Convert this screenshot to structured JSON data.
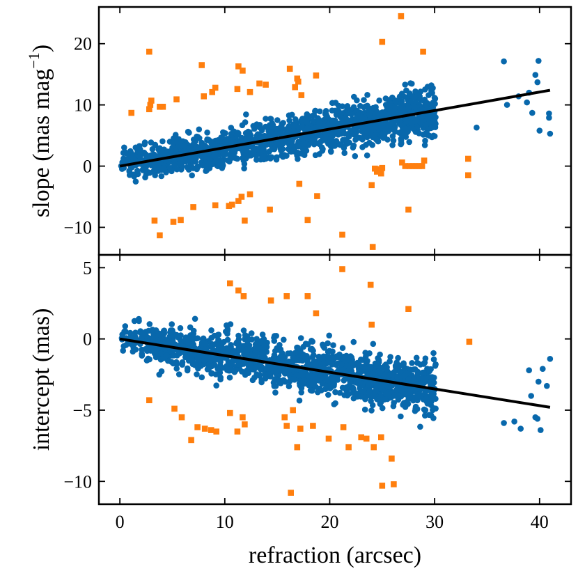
{
  "chart_data": [
    {
      "id": "slope",
      "type": "scatter",
      "xlabel": "refraction (arcsec)",
      "ylabel_parts": [
        "slope (mas mag",
        "−1",
        ")"
      ],
      "xlim": [
        -2,
        43
      ],
      "ylim": [
        -14.5,
        26
      ],
      "xticks": [
        0,
        10,
        20,
        30,
        40
      ],
      "yticks": [
        -10,
        0,
        10,
        20
      ],
      "ytick_labels": [
        "−10",
        "0",
        "10",
        "20"
      ],
      "fit_line": {
        "x": [
          0,
          41
        ],
        "y": [
          0,
          12.4
        ]
      },
      "inlier_cloud": {
        "n": 1400,
        "slope_per_arcsec": 0.3,
        "intercept": 0,
        "scatter_sd": 2.2,
        "seed": 11
      },
      "inliers_sparse": [
        {
          "x": 36.6,
          "y": 17.1
        },
        {
          "x": 39.9,
          "y": 17.2
        },
        {
          "x": 39.6,
          "y": 14.9
        },
        {
          "x": 39.8,
          "y": 13.7
        },
        {
          "x": 39.0,
          "y": 12.0
        },
        {
          "x": 38.8,
          "y": 10.4
        },
        {
          "x": 38.0,
          "y": 11.4
        },
        {
          "x": 39.3,
          "y": 8.7
        },
        {
          "x": 40.0,
          "y": 5.8
        },
        {
          "x": 40.9,
          "y": 8.6
        },
        {
          "x": 40.9,
          "y": 7.9
        },
        {
          "x": 41.0,
          "y": 5.3
        },
        {
          "x": 34.0,
          "y": 6.3
        },
        {
          "x": 36.9,
          "y": 10.0
        }
      ],
      "outliers": [
        {
          "x": 2.8,
          "y": 18.7
        },
        {
          "x": 7.8,
          "y": 16.5
        },
        {
          "x": 11.3,
          "y": 16.3
        },
        {
          "x": 11.7,
          "y": 15.6
        },
        {
          "x": 16.2,
          "y": 15.9
        },
        {
          "x": 16.9,
          "y": 14.3
        },
        {
          "x": 17.0,
          "y": 13.8
        },
        {
          "x": 18.7,
          "y": 14.8
        },
        {
          "x": 25.0,
          "y": 20.3
        },
        {
          "x": 26.8,
          "y": 24.5
        },
        {
          "x": 28.9,
          "y": 18.7
        },
        {
          "x": 1.1,
          "y": 8.7
        },
        {
          "x": 2.8,
          "y": 9.3
        },
        {
          "x": 2.9,
          "y": 10.0
        },
        {
          "x": 3.0,
          "y": 10.7
        },
        {
          "x": 3.8,
          "y": 9.7
        },
        {
          "x": 4.1,
          "y": 9.7
        },
        {
          "x": 5.4,
          "y": 10.9
        },
        {
          "x": 8.0,
          "y": 11.4
        },
        {
          "x": 8.8,
          "y": 12.1
        },
        {
          "x": 9.1,
          "y": 12.8
        },
        {
          "x": 11.2,
          "y": 12.6
        },
        {
          "x": 12.4,
          "y": 12.1
        },
        {
          "x": 13.3,
          "y": 13.5
        },
        {
          "x": 13.9,
          "y": 13.3
        },
        {
          "x": 16.7,
          "y": 12.9
        },
        {
          "x": 17.3,
          "y": 11.6
        },
        {
          "x": 3.3,
          "y": -8.9
        },
        {
          "x": 3.8,
          "y": -11.3
        },
        {
          "x": 5.1,
          "y": -9.1
        },
        {
          "x": 5.8,
          "y": -8.8
        },
        {
          "x": 7.0,
          "y": -6.7
        },
        {
          "x": 9.1,
          "y": -6.4
        },
        {
          "x": 10.4,
          "y": -6.5
        },
        {
          "x": 10.7,
          "y": -6.3
        },
        {
          "x": 11.3,
          "y": -5.7
        },
        {
          "x": 11.6,
          "y": -5.0
        },
        {
          "x": 12.4,
          "y": -4.6
        },
        {
          "x": 11.9,
          "y": -8.9
        },
        {
          "x": 14.3,
          "y": -7.1
        },
        {
          "x": 17.1,
          "y": -2.9
        },
        {
          "x": 17.9,
          "y": -8.8
        },
        {
          "x": 18.8,
          "y": -4.9
        },
        {
          "x": 21.2,
          "y": -11.2
        },
        {
          "x": 24.0,
          "y": -3.1
        },
        {
          "x": 24.1,
          "y": -13.2
        },
        {
          "x": 24.3,
          "y": -0.4
        },
        {
          "x": 24.5,
          "y": -0.9
        },
        {
          "x": 24.7,
          "y": -0.5
        },
        {
          "x": 24.9,
          "y": -1.2
        },
        {
          "x": 25.0,
          "y": -0.3
        },
        {
          "x": 26.9,
          "y": 0.6
        },
        {
          "x": 27.2,
          "y": 0.0
        },
        {
          "x": 27.6,
          "y": 0.0
        },
        {
          "x": 27.9,
          "y": 0.0
        },
        {
          "x": 28.2,
          "y": 0.0
        },
        {
          "x": 28.5,
          "y": 0.0
        },
        {
          "x": 28.8,
          "y": 0.0
        },
        {
          "x": 29.0,
          "y": 0.9
        },
        {
          "x": 27.5,
          "y": -7.1
        },
        {
          "x": 33.2,
          "y": 1.2
        },
        {
          "x": 33.2,
          "y": -1.5
        }
      ]
    },
    {
      "id": "intercept",
      "type": "scatter",
      "xlabel": "refraction (arcsec)",
      "ylabel": "intercept (mas)",
      "xlim": [
        -2,
        43
      ],
      "ylim": [
        -11.6,
        5.9
      ],
      "xticks": [
        0,
        10,
        20,
        30,
        40
      ],
      "xtick_labels": [
        "0",
        "10",
        "20",
        "30",
        "40"
      ],
      "yticks": [
        -10,
        -5,
        0,
        5
      ],
      "ytick_labels": [
        "−10",
        "−5",
        "0",
        "5"
      ],
      "fit_line": {
        "x": [
          0,
          41
        ],
        "y": [
          0,
          -4.8
        ]
      },
      "inlier_cloud": {
        "n": 1400,
        "slope_per_arcsec": -0.117,
        "intercept": 0,
        "scatter_sd": 1.05,
        "seed": 29
      },
      "inliers_sparse": [
        {
          "x": 36.6,
          "y": -5.9
        },
        {
          "x": 37.6,
          "y": -5.8
        },
        {
          "x": 38.2,
          "y": -6.3
        },
        {
          "x": 39.0,
          "y": -2.2
        },
        {
          "x": 39.2,
          "y": -4.0
        },
        {
          "x": 39.6,
          "y": -5.5
        },
        {
          "x": 39.8,
          "y": -5.6
        },
        {
          "x": 39.9,
          "y": -3.0
        },
        {
          "x": 40.3,
          "y": -2.1
        },
        {
          "x": 40.7,
          "y": -3.3
        },
        {
          "x": 41.0,
          "y": -1.4
        },
        {
          "x": 40.1,
          "y": -6.4
        }
      ],
      "outliers": [
        {
          "x": 10.5,
          "y": 3.9
        },
        {
          "x": 11.3,
          "y": 3.4
        },
        {
          "x": 11.8,
          "y": 3.0
        },
        {
          "x": 14.4,
          "y": 2.7
        },
        {
          "x": 15.9,
          "y": 3.0
        },
        {
          "x": 17.9,
          "y": 3.0
        },
        {
          "x": 18.7,
          "y": 1.8
        },
        {
          "x": 21.2,
          "y": 4.9
        },
        {
          "x": 23.9,
          "y": 3.8
        },
        {
          "x": 24.0,
          "y": 1.0
        },
        {
          "x": 27.5,
          "y": 2.1
        },
        {
          "x": 33.3,
          "y": -0.2
        },
        {
          "x": 2.8,
          "y": -4.3
        },
        {
          "x": 5.2,
          "y": -4.9
        },
        {
          "x": 5.9,
          "y": -5.5
        },
        {
          "x": 6.8,
          "y": -7.1
        },
        {
          "x": 7.4,
          "y": -6.2
        },
        {
          "x": 8.1,
          "y": -6.3
        },
        {
          "x": 8.7,
          "y": -6.4
        },
        {
          "x": 9.2,
          "y": -6.5
        },
        {
          "x": 10.5,
          "y": -5.2
        },
        {
          "x": 11.2,
          "y": -6.5
        },
        {
          "x": 11.7,
          "y": -5.5
        },
        {
          "x": 11.9,
          "y": -6.0
        },
        {
          "x": 15.7,
          "y": -5.5
        },
        {
          "x": 15.9,
          "y": -6.1
        },
        {
          "x": 16.5,
          "y": -5.0
        },
        {
          "x": 16.9,
          "y": -7.6
        },
        {
          "x": 17.2,
          "y": -6.3
        },
        {
          "x": 18.4,
          "y": -6.1
        },
        {
          "x": 19.9,
          "y": -7.0
        },
        {
          "x": 21.3,
          "y": -6.2
        },
        {
          "x": 21.8,
          "y": -7.6
        },
        {
          "x": 23.0,
          "y": -6.9
        },
        {
          "x": 23.5,
          "y": -7.0
        },
        {
          "x": 24.2,
          "y": -7.6
        },
        {
          "x": 24.9,
          "y": -6.9
        },
        {
          "x": 25.0,
          "y": -10.3
        },
        {
          "x": 25.9,
          "y": -8.4
        },
        {
          "x": 26.1,
          "y": -10.2
        },
        {
          "x": 16.3,
          "y": -10.8
        }
      ]
    }
  ],
  "style": {
    "inlier_color": "#0868ac",
    "outlier_color": "#ff7f0e",
    "fit_color": "#000000"
  }
}
